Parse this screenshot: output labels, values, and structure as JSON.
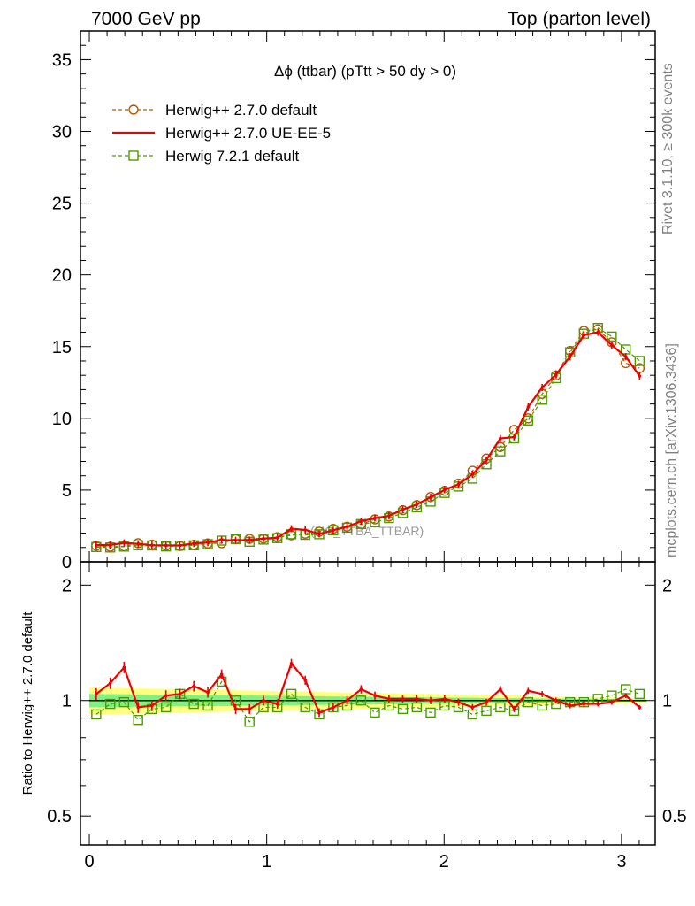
{
  "header": {
    "left": "7000 GeV pp",
    "right": "Top (parton level)"
  },
  "side_labels": {
    "rivet": "Rivet 3.1.10, ≥ 300k events",
    "mcplots": "mcplots.cern.ch [arXiv:1306.3436]"
  },
  "chart_data": [
    {
      "type": "line",
      "title": "Δϕ (ttbar) (pTtt > 50 dy > 0)",
      "watermark": "(MC_TTBA_TTBAR)",
      "xlim": [
        -0.05,
        3.19
      ],
      "ylim": [
        0,
        37
      ],
      "x_ticks": [
        "0",
        "1",
        "2",
        "3"
      ],
      "y_ticks": [
        "0",
        "5",
        "10",
        "15",
        "20",
        "25",
        "30",
        "35"
      ],
      "x": [
        0.039,
        0.118,
        0.196,
        0.275,
        0.353,
        0.432,
        0.511,
        0.589,
        0.668,
        0.746,
        0.825,
        0.903,
        0.982,
        1.06,
        1.139,
        1.217,
        1.296,
        1.375,
        1.453,
        1.532,
        1.61,
        1.689,
        1.767,
        1.846,
        1.924,
        2.003,
        2.081,
        2.16,
        2.238,
        2.317,
        2.395,
        2.474,
        2.553,
        2.631,
        2.71,
        2.788,
        2.867,
        2.945,
        3.024,
        3.102
      ],
      "series": [
        {
          "name": "Herwig++ 2.7.0 default",
          "color": "#b35900",
          "marker": "circle",
          "values": [
            1.12,
            1.05,
            1.08,
            1.3,
            1.2,
            1.12,
            1.1,
            1.18,
            1.28,
            1.3,
            1.58,
            1.6,
            1.62,
            1.72,
            1.85,
            1.96,
            2.1,
            2.3,
            2.45,
            2.62,
            2.96,
            3.16,
            3.6,
            3.96,
            4.52,
            4.95,
            5.45,
            6.35,
            7.2,
            8.0,
            9.2,
            10.0,
            11.7,
            13.0,
            14.7,
            16.1,
            16.2,
            15.3,
            13.85,
            13.5
          ]
        },
        {
          "name": "Herwig++ 2.7.0 UE-EE-5",
          "color": "#ee0000",
          "marker": "line",
          "values": [
            1.17,
            1.17,
            1.32,
            1.25,
            1.16,
            1.15,
            1.14,
            1.28,
            1.35,
            1.52,
            1.5,
            1.52,
            1.62,
            1.68,
            2.31,
            2.22,
            1.95,
            2.2,
            2.45,
            2.82,
            3.05,
            3.2,
            3.65,
            4.0,
            4.5,
            5.02,
            5.4,
            6.1,
            7.1,
            8.6,
            8.7,
            10.8,
            12.15,
            13.05,
            14.3,
            15.8,
            16.0,
            15.1,
            14.3,
            12.95
          ]
        },
        {
          "name": "Herwig 7.2.1 default",
          "color": "#4d9900",
          "marker": "square",
          "values": [
            1.03,
            1.0,
            1.06,
            1.15,
            1.14,
            1.07,
            1.13,
            1.15,
            1.23,
            1.48,
            1.58,
            1.4,
            1.55,
            1.65,
            1.92,
            1.88,
            1.92,
            2.2,
            2.38,
            2.63,
            2.75,
            3.05,
            3.4,
            3.8,
            4.2,
            4.8,
            5.25,
            5.8,
            6.8,
            7.7,
            8.6,
            9.85,
            11.3,
            12.8,
            14.6,
            15.9,
            16.3,
            15.7,
            14.8,
            14.0
          ]
        }
      ]
    },
    {
      "type": "line",
      "ylabel": "Ratio to Herwig++ 2.7.0 default",
      "xlim": [
        -0.05,
        3.19
      ],
      "ylim": [
        0.42,
        2.3
      ],
      "y_scale": "log",
      "x_ticks": [
        "0",
        "1",
        "2",
        "3"
      ],
      "y_ticks": [
        "0.5",
        "1",
        "2"
      ],
      "x": [
        0.039,
        0.118,
        0.196,
        0.275,
        0.353,
        0.432,
        0.511,
        0.589,
        0.668,
        0.746,
        0.825,
        0.903,
        0.982,
        1.06,
        1.139,
        1.217,
        1.296,
        1.375,
        1.453,
        1.532,
        1.61,
        1.689,
        1.767,
        1.846,
        1.924,
        2.003,
        2.081,
        2.16,
        2.238,
        2.317,
        2.395,
        2.474,
        2.553,
        2.631,
        2.71,
        2.788,
        2.867,
        2.945,
        3.024,
        3.102
      ],
      "bands": [
        {
          "color": "#ffff80",
          "halfwidth_lo": 0.08,
          "halfwidth_hi": 0.015
        },
        {
          "color": "#80f080",
          "halfwidth_lo": 0.04,
          "halfwidth_hi": 0.006
        }
      ],
      "series": [
        {
          "name": "Herwig++ 2.7.0 UE-EE-5",
          "color": "#ee0000",
          "values": [
            1.04,
            1.11,
            1.22,
            0.96,
            0.97,
            1.03,
            1.04,
            1.09,
            1.05,
            1.17,
            0.95,
            0.95,
            1.0,
            0.98,
            1.25,
            1.13,
            0.93,
            0.96,
            1.0,
            1.07,
            1.03,
            1.01,
            1.01,
            1.01,
            1.0,
            1.01,
            0.99,
            0.96,
            0.99,
            1.07,
            0.95,
            1.06,
            1.04,
            1.0,
            0.97,
            0.98,
            0.98,
            0.99,
            1.03,
            0.96
          ]
        },
        {
          "name": "Herwig 7.2.1 default",
          "color": "#4d9900",
          "values": [
            0.92,
            0.98,
            0.99,
            0.89,
            0.95,
            0.96,
            1.04,
            0.98,
            0.97,
            1.12,
            1.0,
            0.88,
            0.96,
            0.96,
            1.04,
            0.96,
            0.92,
            0.96,
            0.97,
            1.0,
            0.93,
            0.97,
            0.95,
            0.96,
            0.93,
            0.97,
            0.96,
            0.92,
            0.94,
            0.96,
            0.94,
            0.99,
            0.97,
            0.98,
            0.99,
            0.99,
            1.01,
            1.03,
            1.07,
            1.04
          ]
        }
      ]
    }
  ]
}
